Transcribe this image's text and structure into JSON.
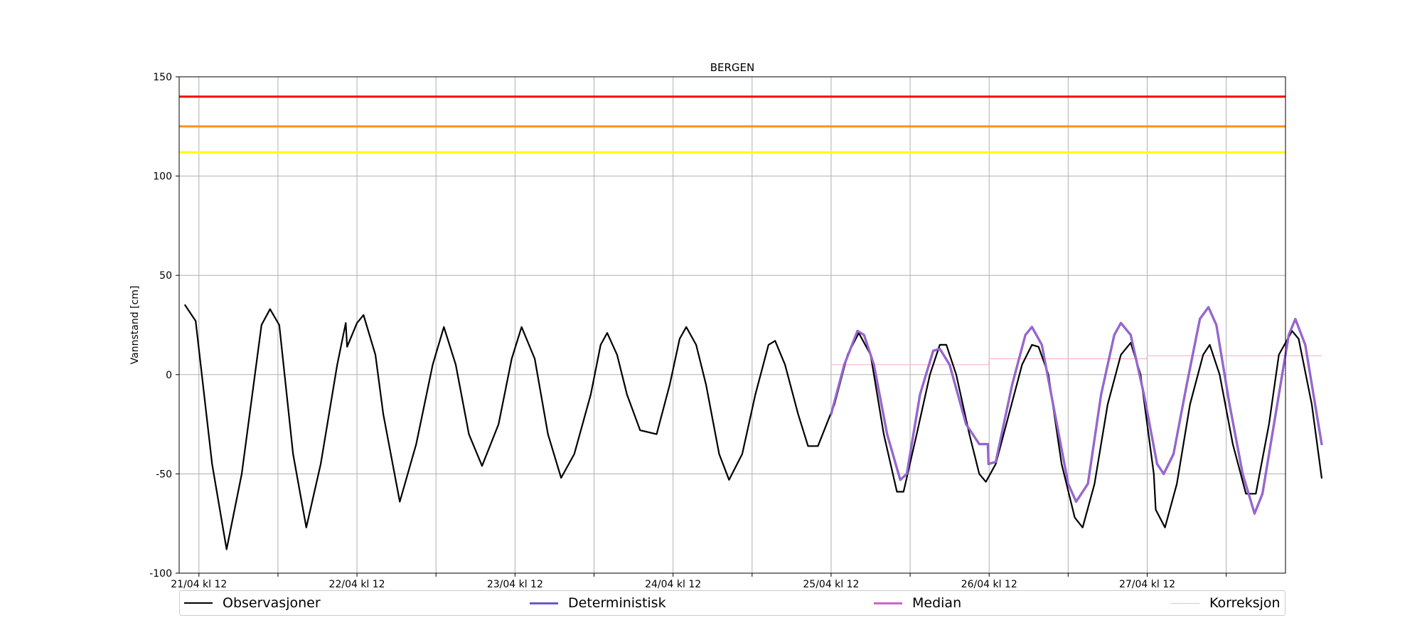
{
  "chart_data": {
    "type": "line",
    "title": "BERGEN",
    "xlabel": "",
    "ylabel": "Vannstand [cm]",
    "ylim": [
      -100,
      150
    ],
    "yticks": [
      -100,
      -50,
      0,
      50,
      100,
      150
    ],
    "xlim_hours": [
      -3,
      165
    ],
    "xticks": [
      {
        "hour": 0,
        "label": "21/04 kl 12"
      },
      {
        "hour": 12,
        "label": ""
      },
      {
        "hour": 24,
        "label": "22/04 kl 12"
      },
      {
        "hour": 36,
        "label": ""
      },
      {
        "hour": 48,
        "label": "23/04 kl 12"
      },
      {
        "hour": 60,
        "label": ""
      },
      {
        "hour": 72,
        "label": "24/04 kl 12"
      },
      {
        "hour": 84,
        "label": ""
      },
      {
        "hour": 96,
        "label": "25/04 kl 12"
      },
      {
        "hour": 108,
        "label": ""
      },
      {
        "hour": 120,
        "label": "26/04 kl 12"
      },
      {
        "hour": 132,
        "label": ""
      },
      {
        "hour": 144,
        "label": "27/04 kl 12"
      },
      {
        "hour": 156,
        "label": ""
      }
    ],
    "grid": true,
    "legend_position": "bottom",
    "thresholds": [
      {
        "value": 140,
        "color": "#ff0000"
      },
      {
        "value": 125,
        "color": "#ff9020"
      },
      {
        "value": 112,
        "color": "#ffff00"
      }
    ],
    "series": [
      {
        "name": "Observasjoner",
        "color": "#000000",
        "points": [
          [
            -2.1,
            35
          ],
          [
            -0.5,
            27
          ],
          [
            2.0,
            -45
          ],
          [
            4.2,
            -88
          ],
          [
            6.5,
            -50
          ],
          [
            9.5,
            25
          ],
          [
            10.8,
            33
          ],
          [
            12.2,
            25
          ],
          [
            14.3,
            -40
          ],
          [
            16.3,
            -77
          ],
          [
            18.5,
            -45
          ],
          [
            21.0,
            5
          ],
          [
            22.3,
            26
          ],
          [
            22.5,
            14
          ],
          [
            24.0,
            26
          ],
          [
            25.0,
            30
          ],
          [
            26.8,
            10
          ],
          [
            28.0,
            -20
          ],
          [
            30.5,
            -64
          ],
          [
            33.0,
            -35
          ],
          [
            35.5,
            5
          ],
          [
            37.2,
            24
          ],
          [
            39.0,
            5
          ],
          [
            41.0,
            -30
          ],
          [
            43.0,
            -46
          ],
          [
            45.5,
            -25
          ],
          [
            47.5,
            8
          ],
          [
            49.0,
            24
          ],
          [
            51.0,
            8
          ],
          [
            53.0,
            -30
          ],
          [
            55.0,
            -52
          ],
          [
            57.0,
            -40
          ],
          [
            59.5,
            -10
          ],
          [
            61.0,
            15
          ],
          [
            62.0,
            21
          ],
          [
            63.5,
            10
          ],
          [
            65.0,
            -10
          ],
          [
            67.0,
            -28
          ],
          [
            69.5,
            -30
          ],
          [
            71.5,
            -5
          ],
          [
            73.0,
            18
          ],
          [
            74.0,
            24
          ],
          [
            75.5,
            15
          ],
          [
            77.0,
            -5
          ],
          [
            79.0,
            -40
          ],
          [
            80.5,
            -53
          ],
          [
            82.5,
            -40
          ],
          [
            84.5,
            -10
          ],
          [
            86.5,
            15
          ],
          [
            87.5,
            17
          ],
          [
            89.0,
            5
          ],
          [
            91.0,
            -20
          ],
          [
            92.5,
            -36
          ],
          [
            94.0,
            -36
          ],
          [
            96.5,
            -15
          ],
          [
            98.5,
            10
          ],
          [
            100.2,
            21
          ],
          [
            102.0,
            10
          ],
          [
            104.0,
            -30
          ],
          [
            106.0,
            -59
          ],
          [
            107.0,
            -59
          ],
          [
            109.0,
            -30
          ],
          [
            111.0,
            0
          ],
          [
            112.5,
            15
          ],
          [
            113.5,
            15
          ],
          [
            115.0,
            0
          ],
          [
            117.0,
            -30
          ],
          [
            118.5,
            -50
          ],
          [
            119.5,
            -54
          ],
          [
            121.0,
            -45
          ],
          [
            123.0,
            -20
          ],
          [
            125.0,
            5
          ],
          [
            126.5,
            15
          ],
          [
            127.5,
            14
          ],
          [
            129.0,
            0
          ],
          [
            131.0,
            -45
          ],
          [
            133.0,
            -72
          ],
          [
            134.2,
            -77
          ],
          [
            136.0,
            -55
          ],
          [
            138.0,
            -15
          ],
          [
            140.0,
            10
          ],
          [
            141.5,
            16
          ],
          [
            143.0,
            0
          ],
          [
            145.0,
            -50
          ],
          [
            145.3,
            -68
          ],
          [
            146.7,
            -77
          ],
          [
            148.5,
            -55
          ],
          [
            150.5,
            -15
          ],
          [
            152.5,
            10
          ],
          [
            153.5,
            15
          ],
          [
            155.0,
            0
          ],
          [
            157.0,
            -35
          ],
          [
            159.0,
            -60
          ],
          [
            160.5,
            -60
          ],
          [
            162.5,
            -25
          ],
          [
            164.0,
            10
          ],
          [
            166.0,
            22
          ],
          [
            167.0,
            18
          ],
          [
            169.0,
            -15
          ],
          [
            170.5,
            -52
          ]
        ]
      },
      {
        "name": "Deterministisk",
        "color": "#6a5acd",
        "points": [
          [
            96.0,
            -20
          ],
          [
            98.0,
            5
          ],
          [
            100.0,
            22
          ],
          [
            101.0,
            20
          ],
          [
            102.5,
            5
          ],
          [
            104.5,
            -30
          ],
          [
            106.5,
            -53
          ],
          [
            107.5,
            -50
          ],
          [
            109.5,
            -10
          ],
          [
            111.5,
            12
          ],
          [
            112.5,
            13
          ],
          [
            114.0,
            5
          ],
          [
            116.5,
            -25
          ],
          [
            118.5,
            -35
          ],
          [
            119.8,
            -35
          ],
          [
            119.9,
            -45
          ],
          [
            121.0,
            -44
          ],
          [
            123.5,
            -5
          ],
          [
            125.5,
            20
          ],
          [
            126.5,
            24
          ],
          [
            128.0,
            15
          ],
          [
            130.0,
            -20
          ],
          [
            132.0,
            -55
          ],
          [
            133.2,
            -64
          ],
          [
            135.0,
            -55
          ],
          [
            137.0,
            -10
          ],
          [
            139.0,
            20
          ],
          [
            140.0,
            26
          ],
          [
            141.5,
            20
          ],
          [
            143.5,
            -10
          ],
          [
            145.5,
            -45
          ],
          [
            146.5,
            -50
          ],
          [
            148.0,
            -40
          ],
          [
            150.0,
            -5
          ],
          [
            152.0,
            28
          ],
          [
            153.3,
            34
          ],
          [
            154.5,
            25
          ],
          [
            156.5,
            -15
          ],
          [
            158.5,
            -50
          ],
          [
            160.3,
            -70
          ],
          [
            161.5,
            -60
          ],
          [
            163.5,
            -20
          ],
          [
            165.5,
            20
          ],
          [
            166.5,
            28
          ],
          [
            168.0,
            15
          ],
          [
            170.5,
            -35
          ]
        ]
      },
      {
        "name": "Median",
        "color": "#cc66cc",
        "points": [
          [
            96.0,
            -20
          ],
          [
            98.0,
            5
          ],
          [
            100.0,
            22
          ],
          [
            101.0,
            20
          ],
          [
            102.5,
            5
          ],
          [
            104.5,
            -30
          ],
          [
            106.5,
            -53
          ],
          [
            107.5,
            -50
          ],
          [
            109.5,
            -10
          ],
          [
            111.5,
            12
          ],
          [
            112.5,
            13
          ],
          [
            114.0,
            5
          ],
          [
            116.5,
            -25
          ],
          [
            118.5,
            -35
          ],
          [
            119.8,
            -35
          ],
          [
            119.9,
            -45
          ],
          [
            121.0,
            -44
          ],
          [
            123.5,
            -5
          ],
          [
            125.5,
            20
          ],
          [
            126.5,
            24
          ],
          [
            128.0,
            15
          ],
          [
            130.0,
            -20
          ],
          [
            132.0,
            -55
          ],
          [
            133.2,
            -64
          ],
          [
            135.0,
            -55
          ],
          [
            137.0,
            -10
          ],
          [
            139.0,
            20
          ],
          [
            140.0,
            26
          ],
          [
            141.5,
            20
          ],
          [
            143.5,
            -10
          ],
          [
            145.5,
            -45
          ],
          [
            146.5,
            -50
          ],
          [
            148.0,
            -40
          ],
          [
            150.0,
            -5
          ],
          [
            152.0,
            28
          ],
          [
            153.3,
            34
          ],
          [
            154.5,
            25
          ],
          [
            156.5,
            -15
          ],
          [
            158.5,
            -50
          ],
          [
            160.3,
            -70
          ],
          [
            161.5,
            -60
          ],
          [
            163.5,
            -20
          ],
          [
            165.5,
            20
          ],
          [
            166.5,
            28
          ],
          [
            168.0,
            15
          ],
          [
            170.5,
            -35
          ]
        ]
      },
      {
        "name": "Korreksjon",
        "color": "#f4b8c8",
        "points": [
          [
            96.0,
            5
          ],
          [
            119.9,
            5
          ],
          [
            120.0,
            8
          ],
          [
            143.9,
            8
          ],
          [
            144.0,
            9.5
          ],
          [
            170.5,
            9.5
          ]
        ]
      }
    ]
  }
}
